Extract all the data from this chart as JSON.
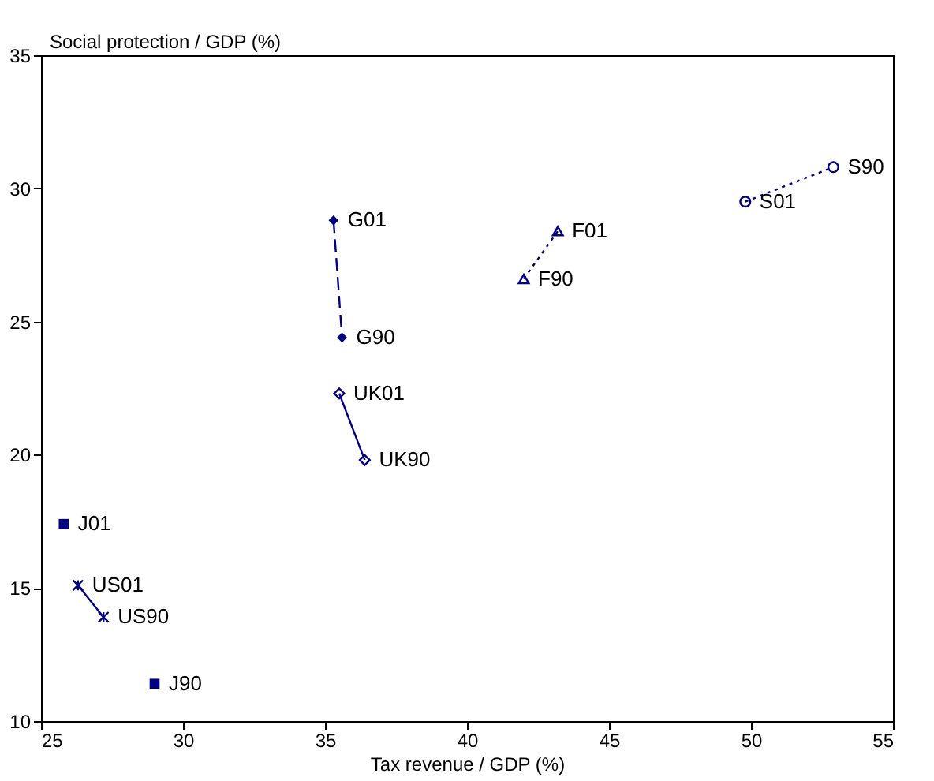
{
  "chart_data": {
    "type": "line",
    "xlabel": "Tax revenue / GDP (%)",
    "ylabel": "Social protection / GDP (%)",
    "xlim": [
      25,
      55
    ],
    "xticks": [
      25,
      30,
      35,
      40,
      45,
      50,
      55
    ],
    "ylim": [
      10,
      35
    ],
    "yticks": [
      10,
      15,
      20,
      25,
      30,
      35
    ],
    "grid": false,
    "series": [
      {
        "type": "scatter",
        "color": "#000080",
        "marker": "square",
        "x": [
          25.8,
          29.0
        ],
        "values": [
          17.4,
          11.4
        ]
      },
      {
        "color": "#000080",
        "marker": "cross",
        "line_style": "solid",
        "x": [
          26.3,
          27.2
        ],
        "values": [
          15.1,
          13.9
        ]
      },
      {
        "color": "#000080",
        "marker": "diamond",
        "line_style": "dashed",
        "x": [
          35.3,
          35.6
        ],
        "values": [
          28.8,
          24.4
        ]
      },
      {
        "color": "#000080",
        "marker": "diamond",
        "line_style": "solid",
        "x": [
          35.5,
          36.4
        ],
        "values": [
          22.3,
          19.8
        ]
      },
      {
        "color": "#000080",
        "marker": "triangle",
        "line_style": "dotted",
        "x": [
          43.2,
          42.0
        ],
        "values": [
          28.4,
          26.6
        ]
      },
      {
        "color": "#000080",
        "marker": "circle",
        "line_style": "dotted",
        "x": [
          49.8,
          52.9
        ],
        "values": [
          29.5,
          30.8
        ]
      }
    ],
    "annotations": [
      {
        "text": "J01",
        "x": 25.8,
        "y": 17.4
      },
      {
        "text": "J90",
        "x": 29.0,
        "y": 11.4
      },
      {
        "text": "US01",
        "x": 26.3,
        "y": 15.1
      },
      {
        "text": "US90",
        "x": 27.2,
        "y": 13.9
      },
      {
        "text": "G01",
        "x": 35.3,
        "y": 28.8
      },
      {
        "text": "G90",
        "x": 35.6,
        "y": 24.4
      },
      {
        "text": "UK01",
        "x": 35.5,
        "y": 22.3
      },
      {
        "text": "UK90",
        "x": 36.4,
        "y": 19.8
      },
      {
        "text": "F01",
        "x": 43.2,
        "y": 28.4
      },
      {
        "text": "F90",
        "x": 42.0,
        "y": 26.6
      },
      {
        "text": "S01",
        "x": 49.8,
        "y": 29.5
      },
      {
        "text": "S90",
        "x": 52.9,
        "y": 30.8
      }
    ]
  }
}
